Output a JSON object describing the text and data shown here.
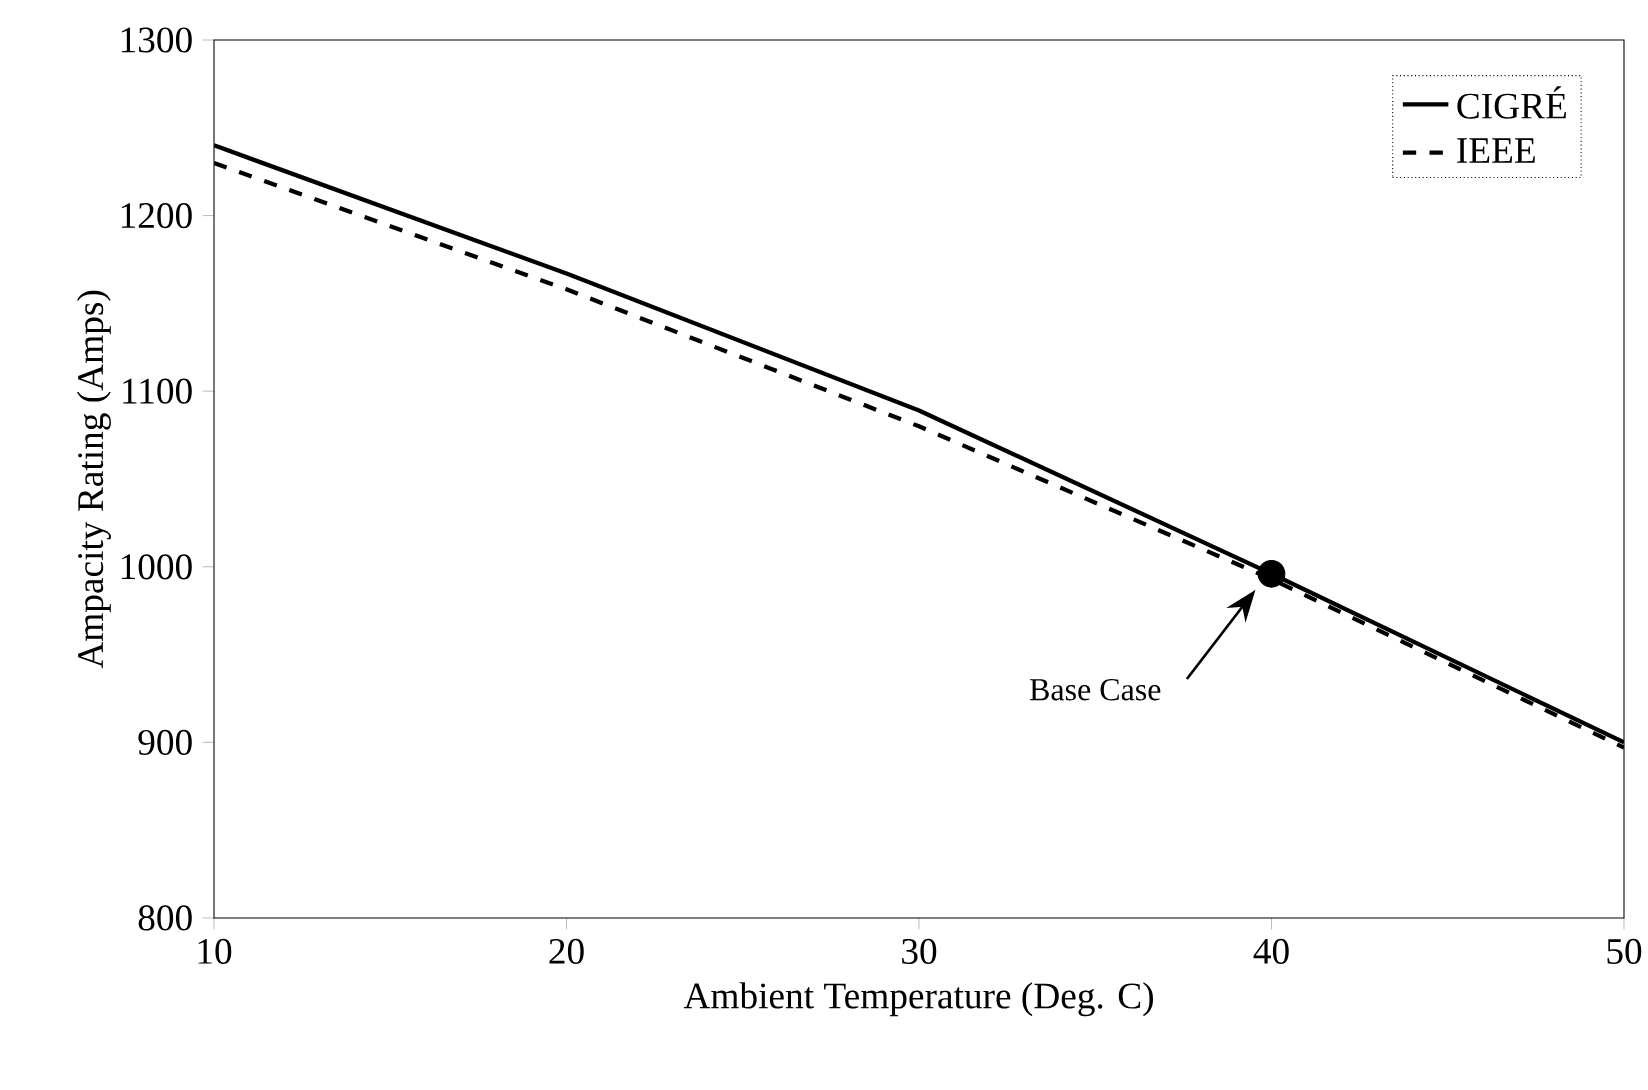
{
  "chart_data": {
    "type": "line",
    "xlabel": "Ambient Temperature (Deg. C)",
    "ylabel": "Ampacity Rating (Amps)",
    "x": [
      10,
      20,
      30,
      40,
      50
    ],
    "series": [
      {
        "name": "CIGRÉ",
        "color": "#000000",
        "values": [
          1240,
          1167,
          1089,
          996,
          900
        ],
        "line_style": "solid"
      },
      {
        "name": "IEEE",
        "color": "#000000",
        "values": [
          1230,
          1158,
          1080,
          993,
          897
        ],
        "line_style": "dashed"
      },
      {
        "type": "scatter",
        "color": "#000000",
        "x": [
          40
        ],
        "values": [
          996
        ],
        "marker": "circle"
      }
    ],
    "annotations": [
      "Base Case"
    ],
    "xlim": [
      10,
      50
    ],
    "ylim": [
      800,
      1300
    ],
    "xticks": [
      10,
      20,
      30,
      40,
      50
    ],
    "yticks": [
      800,
      900,
      1000,
      1100,
      1200,
      1300
    ],
    "legend": "top right",
    "grid": false,
    "marker": "none"
  }
}
